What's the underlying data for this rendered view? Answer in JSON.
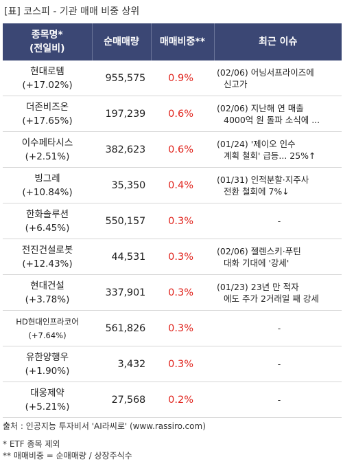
{
  "title": "[표] 코스피 - 기관 매매 비중 상위",
  "headers": {
    "name_line1": "종목명*",
    "name_line2": "(전일비)",
    "volume": "순매매량",
    "ratio": "매매비중**",
    "issue": "최근 이슈"
  },
  "rows": [
    {
      "name": "현대로템",
      "change": "(+17.02%)",
      "volume": "955,575",
      "ratio": "0.9%",
      "issue1": "(02/06) 어닝서프라이즈에",
      "issue2": "신고가"
    },
    {
      "name": "더존비즈온",
      "change": "(+17.65%)",
      "volume": "197,239",
      "ratio": "0.6%",
      "issue1": "(02/06) 지난해 연 매출",
      "issue2": "4000억 원 돌파 소식에 ..."
    },
    {
      "name": "이수페타시스",
      "change": "(+2.51%)",
      "volume": "382,623",
      "ratio": "0.6%",
      "issue1": "(01/24) '제이오 인수",
      "issue2": "계획 철회' 급등... 25%↑"
    },
    {
      "name": "빙그레",
      "change": "(+10.84%)",
      "volume": "35,350",
      "ratio": "0.4%",
      "issue1": "(01/31) 인적분할·지주사",
      "issue2": "전환 철회에 7%↓"
    },
    {
      "name": "한화솔루션",
      "change": "(+6.45%)",
      "volume": "550,157",
      "ratio": "0.3%",
      "issue1": "-",
      "issue2": ""
    },
    {
      "name": "전진건설로봇",
      "change": "(+12.43%)",
      "volume": "44,531",
      "ratio": "0.3%",
      "issue1": "(02/06) 젤렌스키·푸틴",
      "issue2": "대화 기대에 '강세'"
    },
    {
      "name": "현대건설",
      "change": "(+3.78%)",
      "volume": "337,901",
      "ratio": "0.3%",
      "issue1": "(01/23) 23년 만 적자",
      "issue2": "에도 주가 2거래일 째 강세"
    },
    {
      "name": "HD현대인프라코어",
      "change": "(+7.64%)",
      "volume": "561,826",
      "ratio": "0.3%",
      "issue1": "-",
      "issue2": ""
    },
    {
      "name": "유한양행우",
      "change": "(+1.90%)",
      "volume": "3,432",
      "ratio": "0.3%",
      "issue1": "-",
      "issue2": ""
    },
    {
      "name": "대웅제약",
      "change": "(+5.21%)",
      "volume": "27,568",
      "ratio": "0.2%",
      "issue1": "-",
      "issue2": ""
    }
  ],
  "footer": {
    "source": "출처 : 인공지능 투자비서 'AI라씨로' (www.rassiro.com)",
    "note1": "* ETF 종목 제외",
    "note2": "** 매매비중 = 순매매량 / 상장주식수"
  },
  "colors": {
    "header_bg": "#3b4774",
    "ratio_red": "#e0221b"
  }
}
